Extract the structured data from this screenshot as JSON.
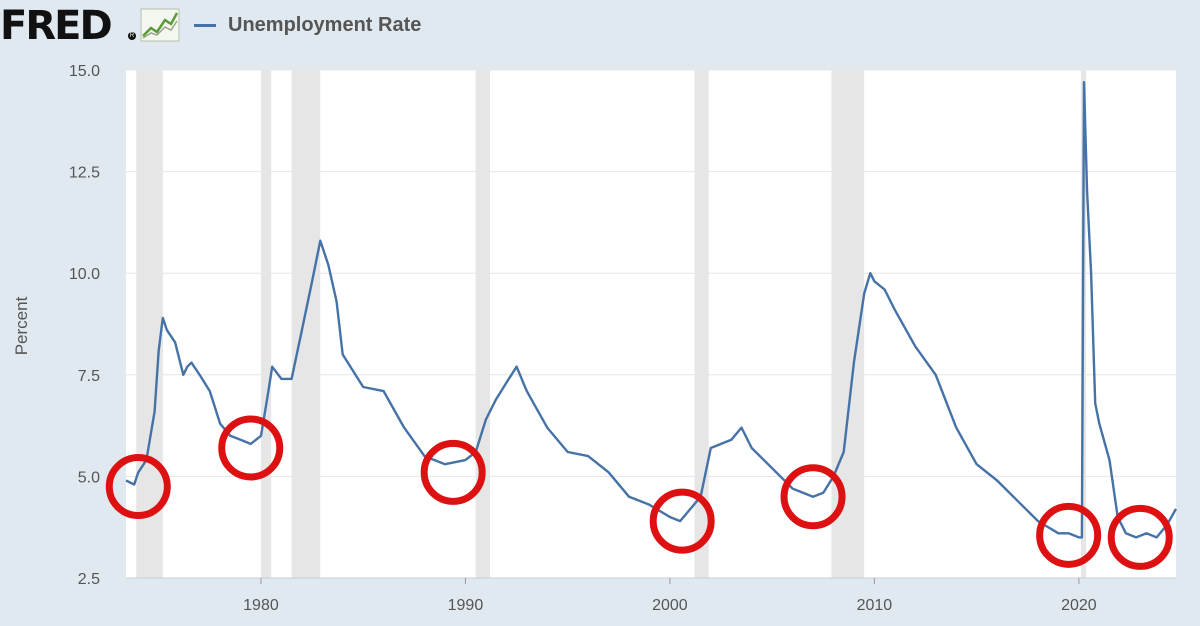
{
  "header": {
    "logo_text": "FRED",
    "logo_icon": "line-chart-logo-icon",
    "legend_label": "Unemployment Rate",
    "legend_color": "#4572a7"
  },
  "colors": {
    "background": "#e1e9f0",
    "plot_background": "#ffffff",
    "recession_shading": "#e6e6e6",
    "line": "#4572a7",
    "highlight_circle": "#dd1111",
    "gridline": "#e6e6e6"
  },
  "chart_data": {
    "type": "line",
    "title": "",
    "xlabel": "",
    "ylabel": "Percent",
    "xlim": [
      1973.4,
      2024.75
    ],
    "ylim": [
      2.5,
      15.0
    ],
    "yticks": [
      2.5,
      5.0,
      7.5,
      10.0,
      12.5,
      15.0
    ],
    "ytick_labels": [
      "2.5",
      "5.0",
      "7.5",
      "10.0",
      "12.5",
      "15.0"
    ],
    "xticks": [
      1980,
      1990,
      2000,
      2010,
      2020
    ],
    "xtick_labels": [
      "1980",
      "1990",
      "2000",
      "2010",
      "2020"
    ],
    "grid": "horizontal",
    "recessions": [
      [
        1973.9,
        1975.2
      ],
      [
        1980.0,
        1980.5
      ],
      [
        1981.5,
        1982.9
      ],
      [
        1990.5,
        1991.2
      ],
      [
        2001.2,
        2001.9
      ],
      [
        2007.9,
        2009.5
      ],
      [
        2020.1,
        2020.35
      ]
    ],
    "series": [
      {
        "name": "Unemployment Rate",
        "x": [
          1973.4,
          1973.8,
          1974.0,
          1974.4,
          1974.8,
          1975.0,
          1975.2,
          1975.4,
          1975.8,
          1976.2,
          1976.4,
          1976.6,
          1977.0,
          1977.5,
          1978.0,
          1978.5,
          1979.0,
          1979.5,
          1980.0,
          1980.3,
          1980.55,
          1981.0,
          1981.5,
          1982.0,
          1982.5,
          1982.9,
          1983.3,
          1983.7,
          1984.0,
          1985.0,
          1986.0,
          1987.0,
          1988.0,
          1989.0,
          1990.0,
          1990.5,
          1991.0,
          1991.5,
          1992.0,
          1992.5,
          1993.0,
          1994.0,
          1995.0,
          1996.0,
          1997.0,
          1998.0,
          1999.0,
          2000.0,
          2000.5,
          2001.0,
          2001.5,
          2002.0,
          2002.5,
          2003.0,
          2003.5,
          2004.0,
          2005.0,
          2006.0,
          2007.0,
          2007.5,
          2008.0,
          2008.5,
          2009.0,
          2009.5,
          2009.8,
          2010.0,
          2010.5,
          2011.0,
          2012.0,
          2013.0,
          2014.0,
          2015.0,
          2016.0,
          2017.0,
          2018.0,
          2019.0,
          2019.5,
          2020.0,
          2020.15,
          2020.25,
          2020.4,
          2020.6,
          2020.8,
          2021.0,
          2021.5,
          2021.9,
          2022.3,
          2022.8,
          2023.3,
          2023.8,
          2024.3,
          2024.75
        ],
        "values": [
          4.9,
          4.8,
          5.1,
          5.4,
          6.6,
          8.1,
          8.9,
          8.6,
          8.3,
          7.5,
          7.7,
          7.8,
          7.5,
          7.1,
          6.3,
          6.0,
          5.9,
          5.8,
          6.0,
          6.9,
          7.7,
          7.4,
          7.4,
          8.6,
          9.8,
          10.8,
          10.2,
          9.3,
          8.0,
          7.2,
          7.1,
          6.2,
          5.5,
          5.3,
          5.4,
          5.6,
          6.4,
          6.9,
          7.3,
          7.7,
          7.1,
          6.2,
          5.6,
          5.5,
          5.1,
          4.5,
          4.3,
          4.0,
          3.9,
          4.2,
          4.5,
          5.7,
          5.8,
          5.9,
          6.2,
          5.7,
          5.2,
          4.7,
          4.5,
          4.6,
          5.0,
          5.6,
          7.8,
          9.5,
          10.0,
          9.8,
          9.6,
          9.1,
          8.2,
          7.5,
          6.2,
          5.3,
          4.9,
          4.4,
          3.9,
          3.6,
          3.6,
          3.5,
          3.5,
          14.7,
          12.0,
          10.0,
          6.8,
          6.3,
          5.4,
          4.0,
          3.6,
          3.5,
          3.6,
          3.5,
          3.8,
          4.2
        ]
      }
    ],
    "highlight_circles": [
      {
        "x": 1974.0,
        "y": 4.75
      },
      {
        "x": 1979.5,
        "y": 5.7
      },
      {
        "x": 1989.4,
        "y": 5.1
      },
      {
        "x": 2000.6,
        "y": 3.9
      },
      {
        "x": 2007.0,
        "y": 4.5
      },
      {
        "x": 2019.5,
        "y": 3.55
      },
      {
        "x": 2023.0,
        "y": 3.5
      }
    ]
  }
}
